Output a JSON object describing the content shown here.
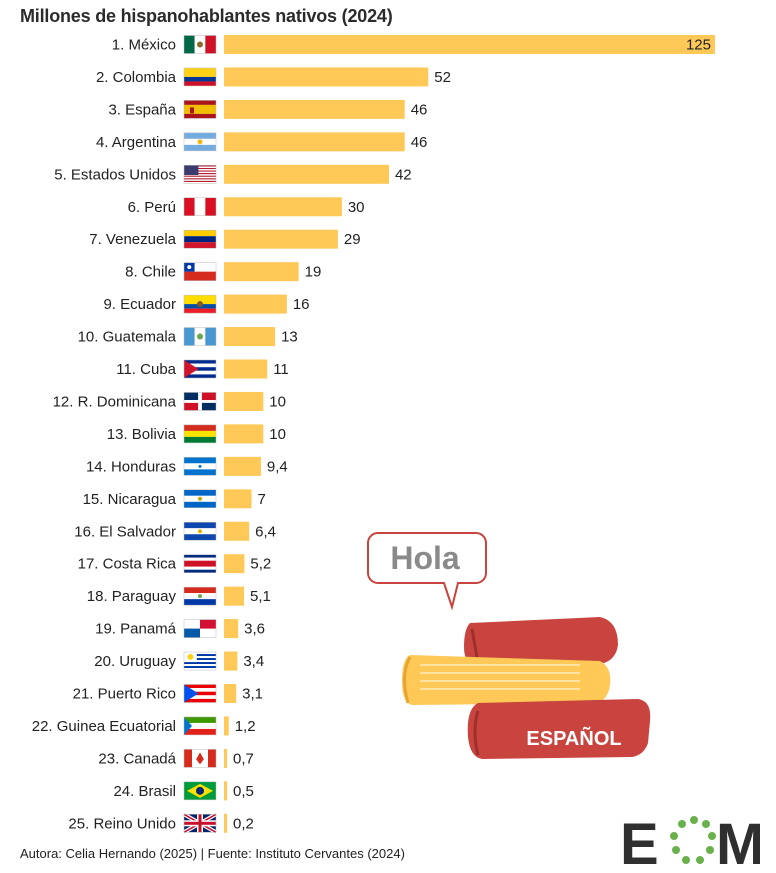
{
  "chart_data": {
    "type": "bar",
    "orientation": "horizontal",
    "title": "Millones de hispanohablantes nativos (2024)",
    "xlabel": "",
    "ylabel": "",
    "xlim": [
      0,
      125
    ],
    "grid": false,
    "bar_color": "#FFC857",
    "categories": [
      "1. México",
      "2. Colombia",
      "3. España",
      "4. Argentina",
      "5. Estados Unidos",
      "6. Perú",
      "7. Venezuela",
      "8. Chile",
      "9. Ecuador",
      "10. Guatemala",
      "11. Cuba",
      "12. R. Dominicana",
      "13. Bolivia",
      "14. Honduras",
      "15. Nicaragua",
      "16. El Salvador",
      "17. Costa Rica",
      "18. Paraguay",
      "19. Panamá",
      "20. Uruguay",
      "21. Puerto Rico",
      "22. Guinea Ecuatorial",
      "23. Canadá",
      "24. Brasil",
      "25. Reino Unido"
    ],
    "values": [
      125,
      52,
      46,
      46,
      42,
      30,
      29,
      19,
      16,
      13,
      11,
      10,
      10,
      9.4,
      7,
      6.4,
      5.2,
      5.1,
      3.6,
      3.4,
      3.1,
      1.2,
      0.7,
      0.5,
      0.2
    ],
    "value_labels": [
      "125",
      "52",
      "46",
      "46",
      "42",
      "30",
      "29",
      "19",
      "16",
      "13",
      "11",
      "10",
      "10",
      "9,4",
      "7",
      "6,4",
      "5,2",
      "5,1",
      "3,6",
      "3,4",
      "3,1",
      "1,2",
      "0,7",
      "0,5",
      "0,2"
    ],
    "flags": [
      "mexico-flag",
      "colombia-flag",
      "spain-flag",
      "argentina-flag",
      "usa-flag",
      "peru-flag",
      "venezuela-flag",
      "chile-flag",
      "ecuador-flag",
      "guatemala-flag",
      "cuba-flag",
      "dominican-republic-flag",
      "bolivia-flag",
      "honduras-flag",
      "nicaragua-flag",
      "el-salvador-flag",
      "costa-rica-flag",
      "paraguay-flag",
      "panama-flag",
      "uruguay-flag",
      "puerto-rico-flag",
      "equatorial-guinea-flag",
      "canada-flag",
      "brazil-flag",
      "uk-flag"
    ]
  },
  "illustration": {
    "speech_bubble": "Hola",
    "book_label": "ESPAÑOL"
  },
  "footer": "Autora: Celia Hernando (2025) | Fuente: Instituto Cervantes (2024)",
  "logo": {
    "text_left": "E",
    "text_right": "M"
  }
}
